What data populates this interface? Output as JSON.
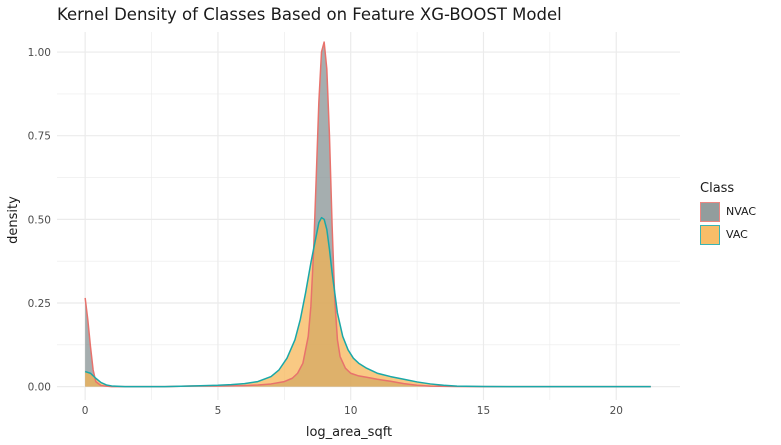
{
  "chart_data": {
    "type": "area",
    "title": "Kernel Density of Classes Based on Feature XG-BOOST Model",
    "xlabel": "log_area_sqft",
    "ylabel": "density",
    "xlim": [
      -1.06,
      22.4
    ],
    "ylim": [
      -0.04,
      1.06
    ],
    "x_ticks": [
      0,
      5,
      10,
      15,
      20
    ],
    "y_ticks": [
      0.0,
      0.25,
      0.5,
      0.75,
      1.0
    ],
    "x_tick_labels": [
      "0",
      "5",
      "10",
      "15",
      "20"
    ],
    "y_tick_labels": [
      "0.00",
      "0.25",
      "0.50",
      "0.75",
      "1.00"
    ],
    "grid": true,
    "legend": {
      "title": "Class",
      "position": "right"
    },
    "colors": {
      "NVAC_fill": "#7f8c8d",
      "NVAC_line": "#e8726c",
      "VAC_fill": "#f7b24e",
      "VAC_line": "#1aa8a8",
      "grid": "#ebebeb"
    },
    "series": [
      {
        "name": "NVAC",
        "x": [
          0,
          0.1,
          0.2,
          0.3,
          0.4,
          0.6,
          1.0,
          1.5,
          3.0,
          4.0,
          5.0,
          6.0,
          6.5,
          7.0,
          7.5,
          7.8,
          8.0,
          8.2,
          8.4,
          8.5,
          8.6,
          8.7,
          8.8,
          8.9,
          9.0,
          9.1,
          9.2,
          9.3,
          9.4,
          9.5,
          9.6,
          9.8,
          10.0,
          10.3,
          10.6,
          11.0,
          11.5,
          12.0,
          12.5,
          13.0,
          14.0,
          15.0,
          16.0,
          18.0,
          20.0,
          21.3
        ],
        "y": [
          0.265,
          0.2,
          0.12,
          0.05,
          0.015,
          0.003,
          0.0,
          0.0,
          0.0,
          0.002,
          0.002,
          0.003,
          0.005,
          0.008,
          0.015,
          0.025,
          0.04,
          0.07,
          0.15,
          0.24,
          0.4,
          0.62,
          0.85,
          1.0,
          1.03,
          0.95,
          0.75,
          0.48,
          0.26,
          0.14,
          0.09,
          0.055,
          0.04,
          0.032,
          0.028,
          0.022,
          0.016,
          0.009,
          0.004,
          0.0015,
          0.0003,
          0.0,
          0.0,
          0.0,
          0.0,
          0.0
        ]
      },
      {
        "name": "VAC",
        "x": [
          0,
          0.2,
          0.4,
          0.6,
          0.8,
          1.0,
          1.5,
          2.0,
          3.0,
          4.0,
          5.0,
          5.5,
          6.0,
          6.5,
          7.0,
          7.3,
          7.6,
          7.9,
          8.1,
          8.3,
          8.5,
          8.7,
          8.8,
          8.9,
          9.0,
          9.1,
          9.2,
          9.3,
          9.5,
          9.7,
          9.9,
          10.1,
          10.3,
          10.6,
          11.0,
          11.5,
          12.0,
          12.5,
          13.0,
          13.5,
          14.0,
          15.0,
          16.0,
          18.0,
          20.0,
          21.3
        ],
        "y": [
          0.045,
          0.04,
          0.025,
          0.012,
          0.005,
          0.002,
          0.0,
          0.0,
          0.0,
          0.002,
          0.004,
          0.006,
          0.009,
          0.015,
          0.03,
          0.05,
          0.085,
          0.14,
          0.2,
          0.28,
          0.37,
          0.45,
          0.49,
          0.505,
          0.5,
          0.47,
          0.41,
          0.34,
          0.22,
          0.15,
          0.11,
          0.085,
          0.07,
          0.055,
          0.04,
          0.03,
          0.022,
          0.014,
          0.008,
          0.004,
          0.0015,
          0.0003,
          0.0,
          0.0,
          0.0,
          0.0
        ]
      }
    ]
  }
}
